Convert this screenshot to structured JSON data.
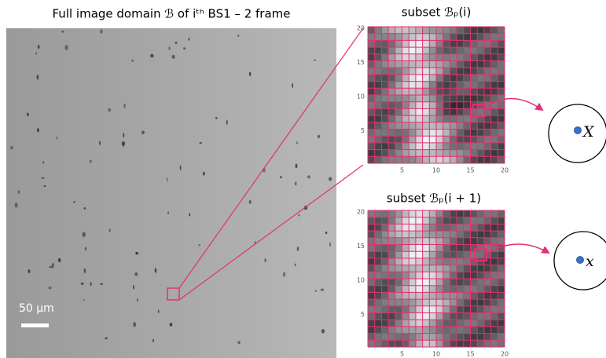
{
  "figure": {
    "title": "Full image domain ℬ of iᵗʰ BS1 – 2 frame",
    "scale_bar": "50 µm"
  },
  "subsets": [
    {
      "title": "subset ℬₚ(i)",
      "xticks": [
        5,
        10,
        15,
        20
      ],
      "yticks": [
        5,
        10,
        15,
        20
      ],
      "point_label": "X"
    },
    {
      "title": "subset ℬₚ(i + 1)",
      "xticks": [
        5,
        10,
        15,
        20
      ],
      "yticks": [
        5,
        10,
        15,
        20
      ],
      "point_label": "x"
    }
  ]
}
